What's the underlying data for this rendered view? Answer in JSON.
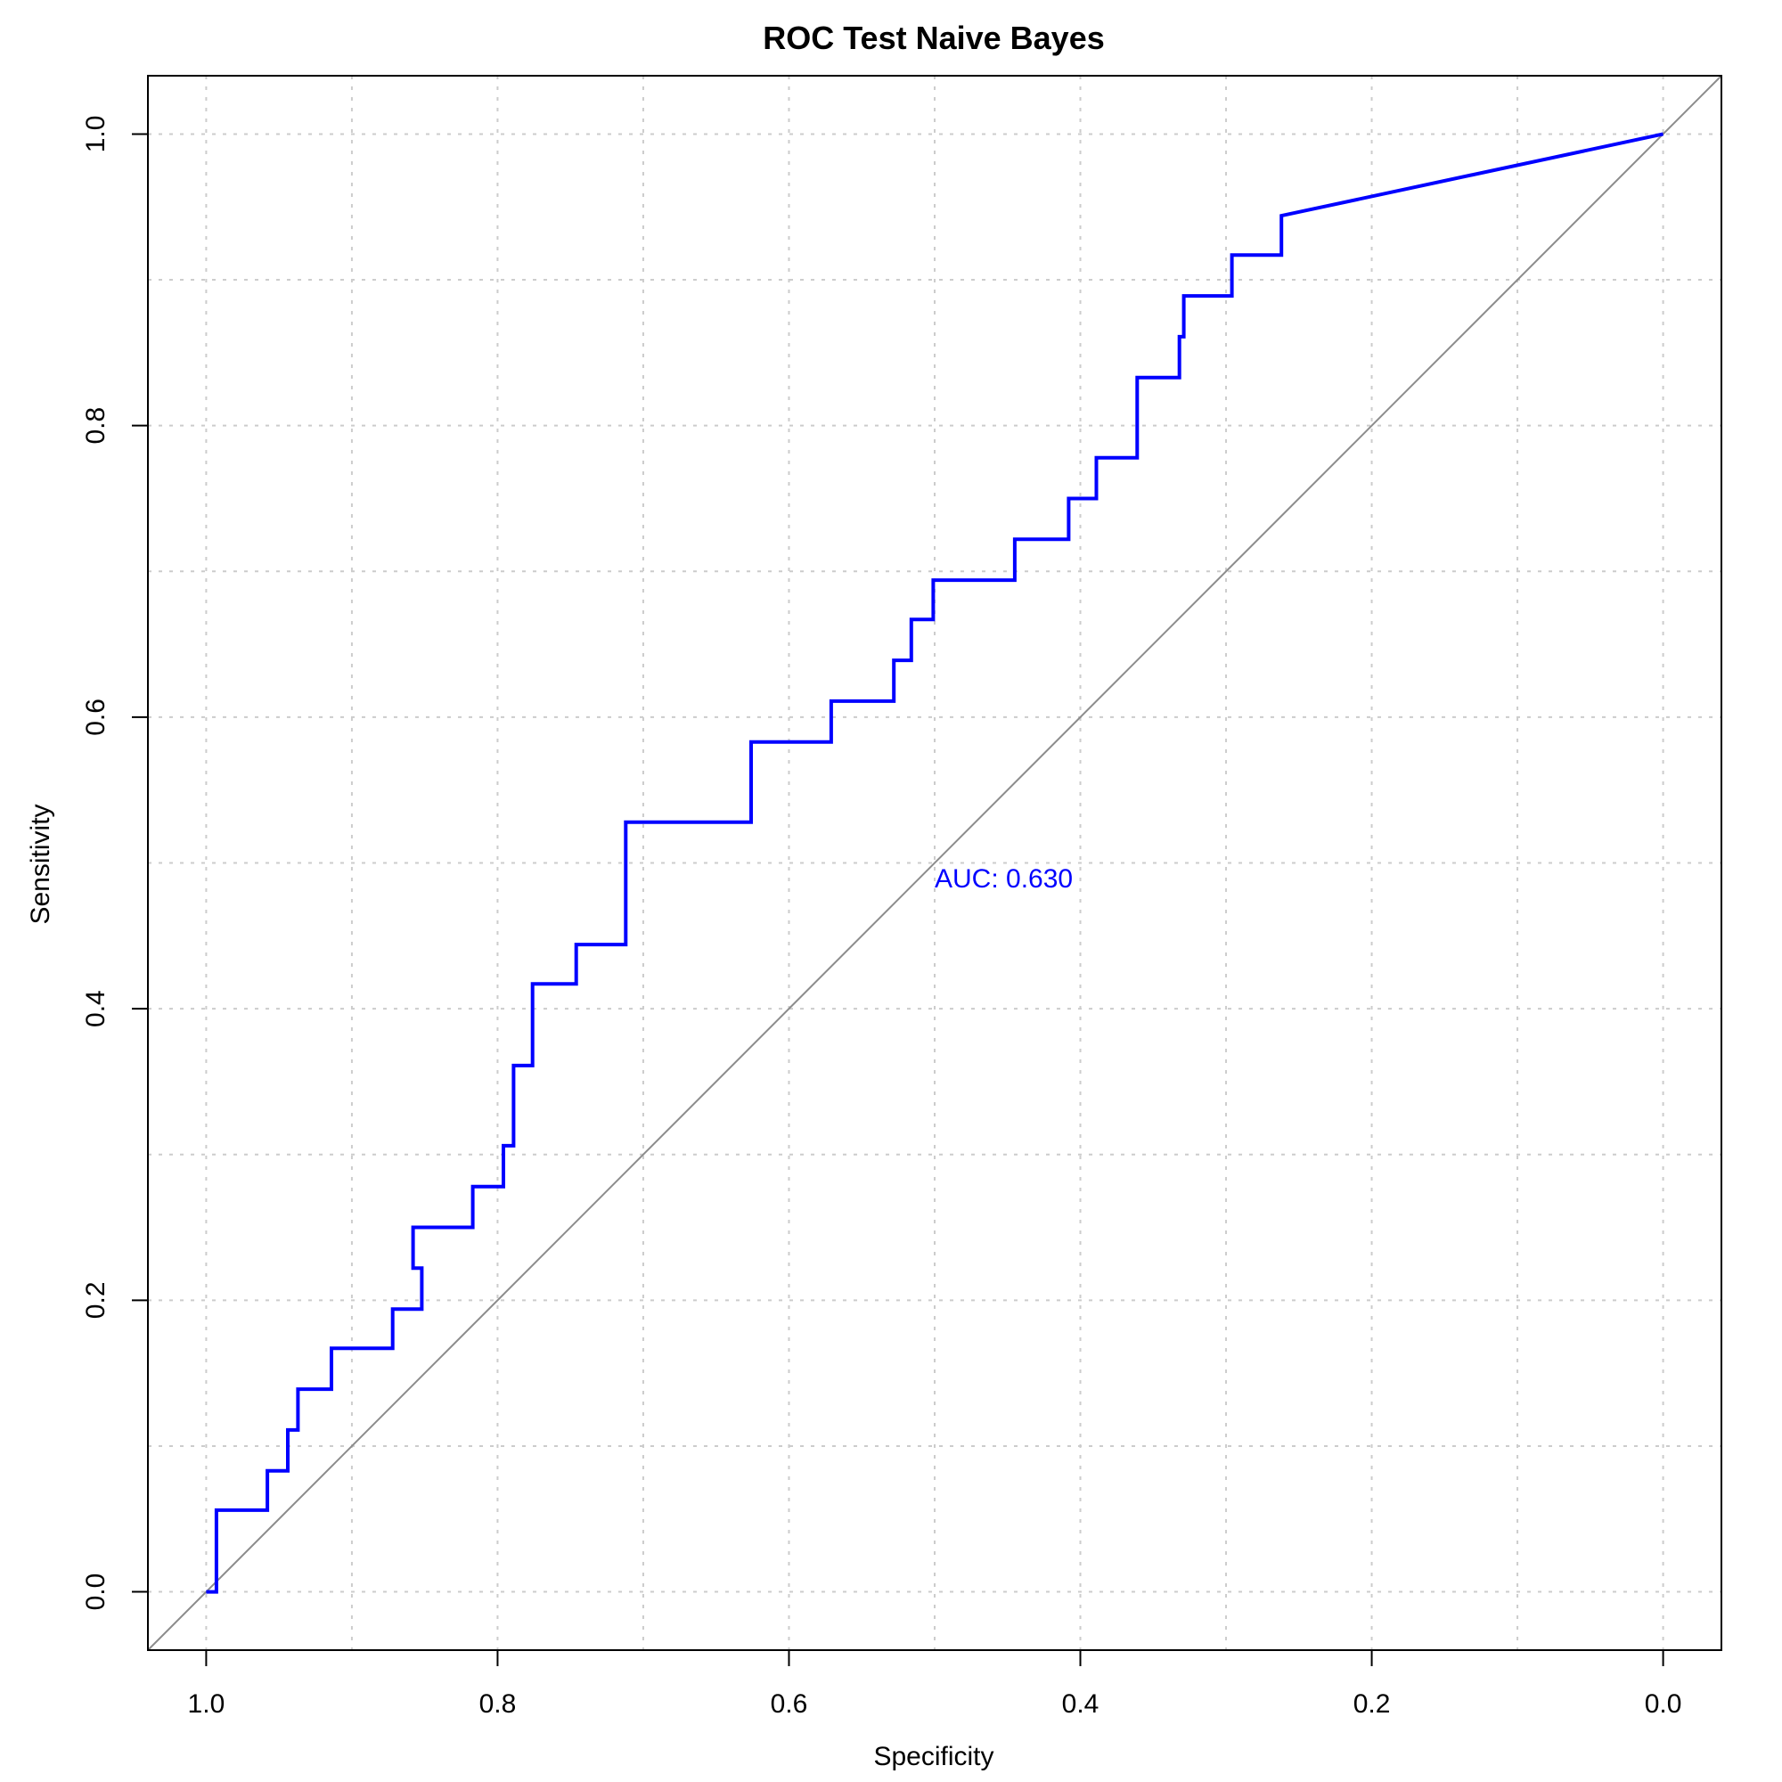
{
  "chart_data": {
    "type": "line",
    "title": "ROC Test Naive Bayes",
    "xlabel": "Specificity",
    "ylabel": "Sensitivity",
    "xlim": [
      1.04,
      -0.04
    ],
    "ylim": [
      -0.04,
      1.04
    ],
    "x_reversed": true,
    "grid": true,
    "x_ticks": [
      1.0,
      0.8,
      0.6,
      0.4,
      0.2,
      0.0
    ],
    "x_tick_labels": [
      "1.0",
      "0.8",
      "0.6",
      "0.4",
      "0.2",
      "0.0"
    ],
    "y_ticks": [
      0.0,
      0.2,
      0.4,
      0.6,
      0.8,
      1.0
    ],
    "y_tick_labels": [
      "0.0",
      "0.2",
      "0.4",
      "0.6",
      "0.8",
      "1.0"
    ],
    "grid_x": [
      1.0,
      0.9,
      0.8,
      0.7,
      0.6,
      0.5,
      0.4,
      0.3,
      0.2,
      0.1,
      0.0
    ],
    "grid_y": [
      0.0,
      0.1,
      0.2,
      0.3,
      0.4,
      0.5,
      0.6,
      0.7,
      0.8,
      0.9,
      1.0
    ],
    "reference_line": {
      "from": [
        1.04,
        -0.04
      ],
      "to": [
        -0.04,
        1.04
      ],
      "color": "#8c8c8c"
    },
    "series": [
      {
        "color": "#0000ff",
        "specificity": [
          1.0,
          0.993,
          0.993,
          0.958,
          0.958,
          0.944,
          0.944,
          0.937,
          0.937,
          0.914,
          0.914,
          0.872,
          0.872,
          0.852,
          0.852,
          0.858,
          0.858,
          0.817,
          0.817,
          0.796,
          0.796,
          0.789,
          0.789,
          0.776,
          0.776,
          0.746,
          0.746,
          0.712,
          0.712,
          0.626,
          0.626,
          0.571,
          0.571,
          0.528,
          0.528,
          0.516,
          0.516,
          0.501,
          0.501,
          0.445,
          0.445,
          0.408,
          0.408,
          0.389,
          0.389,
          0.361,
          0.361,
          0.332,
          0.332,
          0.329,
          0.329,
          0.296,
          0.296,
          0.262,
          0.262,
          0.0
        ],
        "sensitivity": [
          0.0,
          0.0,
          0.056,
          0.056,
          0.083,
          0.083,
          0.111,
          0.111,
          0.139,
          0.139,
          0.167,
          0.167,
          0.194,
          0.194,
          0.222,
          0.222,
          0.25,
          0.25,
          0.278,
          0.278,
          0.306,
          0.306,
          0.361,
          0.361,
          0.417,
          0.417,
          0.444,
          0.444,
          0.528,
          0.528,
          0.583,
          0.583,
          0.611,
          0.611,
          0.639,
          0.639,
          0.667,
          0.667,
          0.694,
          0.694,
          0.722,
          0.722,
          0.75,
          0.75,
          0.778,
          0.778,
          0.833,
          0.833,
          0.861,
          0.861,
          0.889,
          0.889,
          0.917,
          0.917,
          0.944,
          1.0
        ]
      }
    ],
    "annotations": [
      {
        "text": "AUC: 0.630",
        "x": 0.5,
        "y": 0.49,
        "color": "#0000ff"
      }
    ]
  }
}
